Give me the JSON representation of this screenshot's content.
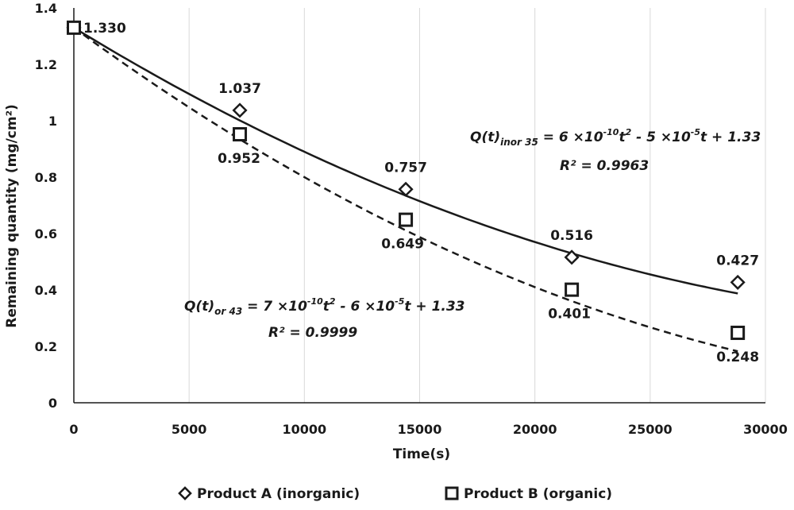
{
  "chart_data": {
    "type": "scatter",
    "xlabel": "Time(s)",
    "ylabel": "Remaining quantity (mg/cm²)",
    "xlim": [
      0,
      30000
    ],
    "ylim": [
      0,
      1.4
    ],
    "x_ticks": [
      0,
      5000,
      10000,
      15000,
      20000,
      25000,
      30000
    ],
    "y_ticks": [
      0,
      0.2,
      0.4,
      0.6,
      0.8,
      1,
      1.2,
      1.4
    ],
    "x_tick_labels": [
      "0",
      "5000",
      "10000",
      "15000",
      "20000",
      "25000",
      "30000"
    ],
    "y_tick_labels": [
      "0",
      "0.2",
      "0.4",
      "0.6",
      "0.8",
      "1",
      "1.2",
      "1.4"
    ],
    "grid": "vertical",
    "legend_position": "bottom",
    "series": [
      {
        "name": "Product A (inorganic)",
        "marker": "diamond",
        "line_style": "solid",
        "x": [
          0,
          7200,
          14400,
          21600,
          28800
        ],
        "y": [
          1.33,
          1.037,
          0.757,
          0.516,
          0.427
        ],
        "labels": [
          "1.330",
          "1.037",
          "0.757",
          "0.516",
          "0.427"
        ],
        "trend": {
          "a": 6e-10,
          "b": -5e-05,
          "c": 1.33
        },
        "equation": {
          "lhs": "Q(t)",
          "sub": "inor 35",
          "rhs_1": " = 6 ×10",
          "exp_1": "-10",
          "rhs_2": "t",
          "exp_2": "2",
          "rhs_3": " - 5 ×10",
          "exp_3": "-5",
          "rhs_4": "t + 1.33",
          "r2": "R² = 0.9963"
        }
      },
      {
        "name": "Product B (organic)",
        "marker": "square",
        "line_style": "dashed",
        "x": [
          0,
          7200,
          14400,
          21600,
          28800
        ],
        "y": [
          1.33,
          0.952,
          0.649,
          0.401,
          0.248
        ],
        "labels": [
          "",
          "0.952",
          "0.649",
          "0.401",
          "0.248"
        ],
        "trend": {
          "a": 7e-10,
          "b": -6e-05,
          "c": 1.33
        },
        "equation": {
          "lhs": "Q(t)",
          "sub": "or 43",
          "rhs_1": " = 7 ×10",
          "exp_1": "-10",
          "rhs_2": "t",
          "exp_2": "2",
          "rhs_3": " - 6 ×10",
          "exp_3": "-5",
          "rhs_4": "t + 1.33",
          "r2": "R² = 0.9999"
        }
      }
    ]
  }
}
